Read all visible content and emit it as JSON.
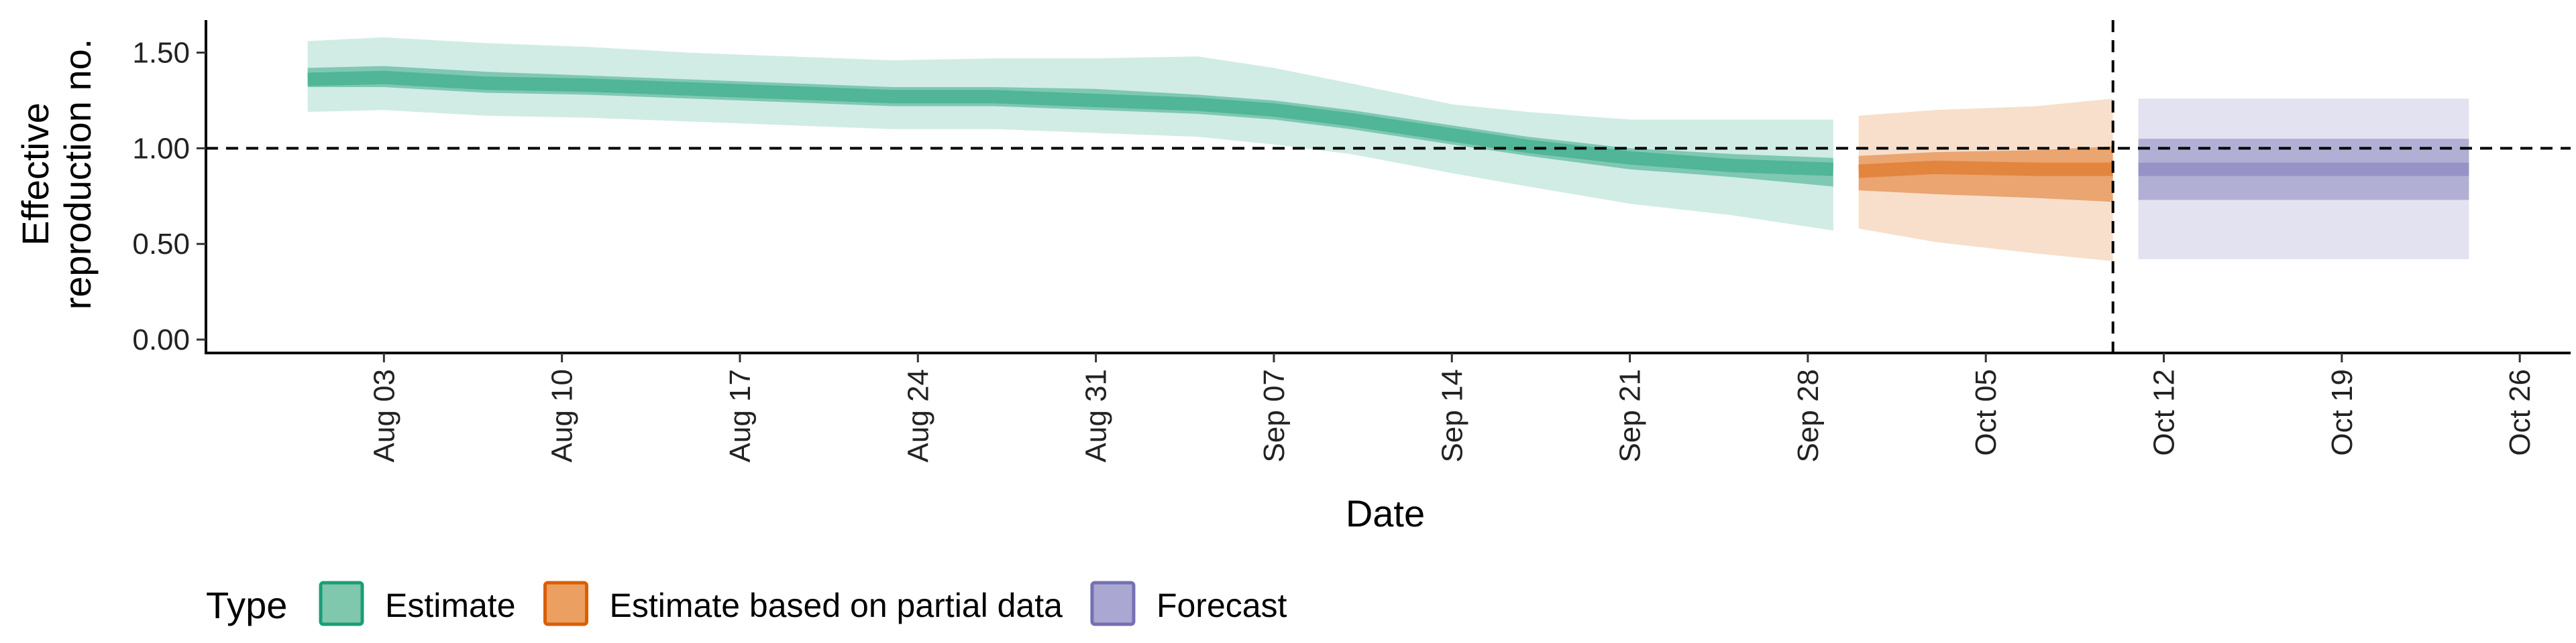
{
  "chart_data": {
    "type": "area",
    "xlabel": "Date",
    "ylabel_lines": [
      "Effective",
      "reproduction no."
    ],
    "x_ticks": [
      "2020-08-03",
      "2020-08-10",
      "2020-08-17",
      "2020-08-24",
      "2020-08-31",
      "2020-09-07",
      "2020-09-14",
      "2020-09-21",
      "2020-09-28",
      "2020-10-05",
      "2020-10-12",
      "2020-10-19",
      "2020-10-26"
    ],
    "x_tick_labels": [
      "Aug 03",
      "Aug 10",
      "Aug 17",
      "Aug 24",
      "Aug 31",
      "Sep 07",
      "Sep 14",
      "Sep 21",
      "Sep 28",
      "Oct 05",
      "Oct 12",
      "Oct 19",
      "Oct 26"
    ],
    "y_ticks": [
      0.0,
      0.5,
      1.0,
      1.5
    ],
    "y_tick_labels": [
      "0.00",
      "0.50",
      "1.00",
      "1.50"
    ],
    "xlim": [
      "2020-07-27",
      "2020-10-28"
    ],
    "ylim": [
      -0.07,
      1.67
    ],
    "reference_line_y": 1.0,
    "forecast_start_date": "2020-10-10",
    "grid": false,
    "legend": {
      "position": "bottom-left",
      "title": "Type",
      "items": [
        {
          "label": "Estimate",
          "fill": "#7fc7ad",
          "border": "#1b9e77"
        },
        {
          "label": "Estimate based on partial data",
          "fill": "#eb9f60",
          "border": "#d95f02"
        },
        {
          "label": "Forecast",
          "fill": "#aaa8d2",
          "border": "#7570b3"
        }
      ]
    },
    "series": [
      {
        "name": "Estimate",
        "color": "#1b9e77",
        "points": [
          {
            "date": "2020-07-31",
            "median": 1.36,
            "lower_50": 1.32,
            "upper_50": 1.42,
            "lower_90": 1.19,
            "upper_90": 1.56
          },
          {
            "date": "2020-08-03",
            "median": 1.37,
            "lower_50": 1.32,
            "upper_50": 1.43,
            "lower_90": 1.2,
            "upper_90": 1.58
          },
          {
            "date": "2020-08-07",
            "median": 1.34,
            "lower_50": 1.29,
            "upper_50": 1.4,
            "lower_90": 1.17,
            "upper_90": 1.55
          },
          {
            "date": "2020-08-11",
            "median": 1.33,
            "lower_50": 1.28,
            "upper_50": 1.38,
            "lower_90": 1.16,
            "upper_90": 1.53
          },
          {
            "date": "2020-08-15",
            "median": 1.31,
            "lower_50": 1.26,
            "upper_50": 1.36,
            "lower_90": 1.14,
            "upper_90": 1.5
          },
          {
            "date": "2020-08-19",
            "median": 1.29,
            "lower_50": 1.24,
            "upper_50": 1.34,
            "lower_90": 1.12,
            "upper_90": 1.48
          },
          {
            "date": "2020-08-23",
            "median": 1.27,
            "lower_50": 1.22,
            "upper_50": 1.32,
            "lower_90": 1.1,
            "upper_90": 1.46
          },
          {
            "date": "2020-08-27",
            "median": 1.27,
            "lower_50": 1.22,
            "upper_50": 1.32,
            "lower_90": 1.1,
            "upper_90": 1.47
          },
          {
            "date": "2020-08-31",
            "median": 1.25,
            "lower_50": 1.2,
            "upper_50": 1.31,
            "lower_90": 1.08,
            "upper_90": 1.47
          },
          {
            "date": "2020-09-04",
            "median": 1.23,
            "lower_50": 1.18,
            "upper_50": 1.28,
            "lower_90": 1.06,
            "upper_90": 1.48
          },
          {
            "date": "2020-09-07",
            "median": 1.2,
            "lower_50": 1.15,
            "upper_50": 1.25,
            "lower_90": 1.02,
            "upper_90": 1.42
          },
          {
            "date": "2020-09-10",
            "median": 1.15,
            "lower_50": 1.1,
            "upper_50": 1.2,
            "lower_90": 0.97,
            "upper_90": 1.34
          },
          {
            "date": "2020-09-14",
            "median": 1.07,
            "lower_50": 1.02,
            "upper_50": 1.12,
            "lower_90": 0.87,
            "upper_90": 1.23
          },
          {
            "date": "2020-09-17",
            "median": 1.01,
            "lower_50": 0.96,
            "upper_50": 1.06,
            "lower_90": 0.8,
            "upper_90": 1.19
          },
          {
            "date": "2020-09-21",
            "median": 0.95,
            "lower_50": 0.89,
            "upper_50": 1.0,
            "lower_90": 0.71,
            "upper_90": 1.15
          },
          {
            "date": "2020-09-25",
            "median": 0.91,
            "lower_50": 0.85,
            "upper_50": 0.97,
            "lower_90": 0.65,
            "upper_90": 1.15
          },
          {
            "date": "2020-09-29",
            "median": 0.89,
            "lower_50": 0.8,
            "upper_50": 0.95,
            "lower_90": 0.57,
            "upper_90": 1.15
          }
        ]
      },
      {
        "name": "Estimate based on partial data",
        "color": "#d95f02",
        "points": [
          {
            "date": "2020-09-30",
            "median": 0.88,
            "lower_50": 0.78,
            "upper_50": 0.96,
            "lower_90": 0.58,
            "upper_90": 1.17
          },
          {
            "date": "2020-10-03",
            "median": 0.9,
            "lower_50": 0.76,
            "upper_50": 0.98,
            "lower_90": 0.51,
            "upper_90": 1.2
          },
          {
            "date": "2020-10-07",
            "median": 0.89,
            "lower_50": 0.74,
            "upper_50": 0.99,
            "lower_90": 0.45,
            "upper_90": 1.22
          },
          {
            "date": "2020-10-10",
            "median": 0.89,
            "lower_50": 0.72,
            "upper_50": 1.01,
            "lower_90": 0.41,
            "upper_90": 1.26
          }
        ]
      },
      {
        "name": "Forecast",
        "color": "#7570b3",
        "points": [
          {
            "date": "2020-10-11",
            "median": 0.89,
            "lower_50": 0.73,
            "upper_50": 1.05,
            "lower_90": 0.42,
            "upper_90": 1.26
          },
          {
            "date": "2020-10-24",
            "median": 0.89,
            "lower_50": 0.73,
            "upper_50": 1.05,
            "lower_90": 0.42,
            "upper_90": 1.26
          }
        ]
      }
    ]
  }
}
